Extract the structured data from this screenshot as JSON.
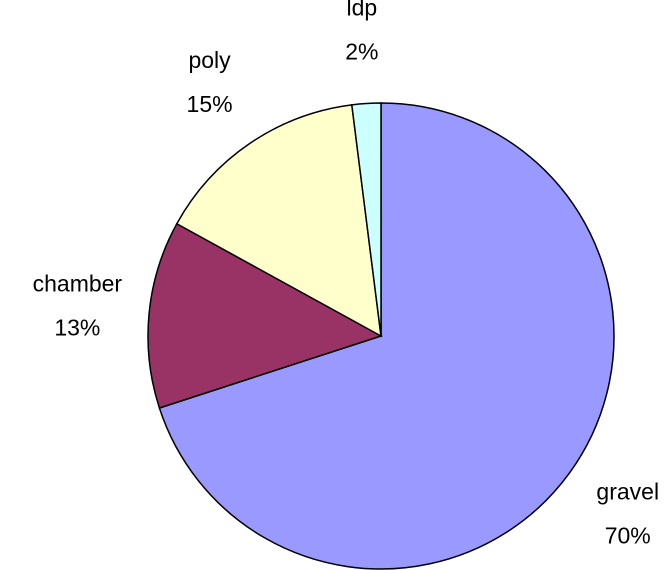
{
  "chart_data": {
    "type": "pie",
    "categories": [
      "gravel",
      "chamber",
      "poly",
      "ldp"
    ],
    "values": [
      70,
      13,
      15,
      2
    ],
    "value_labels": [
      "70%",
      "13%",
      "15%",
      "2%"
    ],
    "colors": [
      "#9999ff",
      "#993366",
      "#ffffcc",
      "#ccffff"
    ]
  }
}
